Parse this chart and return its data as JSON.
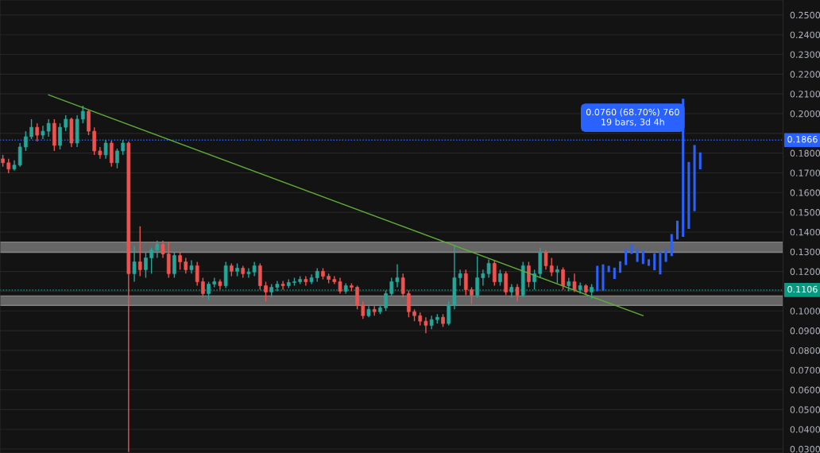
{
  "chart_data": {
    "type": "candlestick",
    "categories": [
      null,
      null,
      null,
      null,
      null,
      null,
      null,
      null,
      null,
      null,
      null,
      null,
      null,
      null,
      null,
      null,
      null,
      null,
      null,
      null,
      null,
      null,
      null,
      null,
      null,
      null,
      null,
      null,
      null,
      null,
      null,
      null,
      null,
      null,
      null,
      null,
      null,
      null,
      null,
      null,
      null,
      null,
      null,
      null,
      null,
      null,
      null,
      null,
      null,
      null,
      null,
      null,
      null,
      null,
      null,
      null,
      null,
      null,
      null,
      null,
      null,
      null,
      null,
      null,
      null,
      null,
      null,
      null,
      null,
      null,
      null,
      null,
      null,
      null,
      null,
      null,
      null,
      null,
      null,
      null,
      null,
      null,
      null,
      null,
      null,
      null,
      null,
      null,
      null,
      null,
      null,
      null,
      null,
      null,
      null,
      null,
      null,
      null,
      null,
      null,
      null,
      null,
      null,
      null,
      null,
      null,
      null,
      null,
      null,
      null,
      null,
      null,
      null,
      null,
      null,
      null,
      null,
      null,
      null,
      null,
      null,
      null,
      null,
      null,
      null,
      null,
      null,
      null,
      null,
      null,
      null,
      null,
      null,
      null,
      null,
      null,
      null
    ],
    "ohlc": [
      [
        0.1771,
        0.1791,
        0.1731,
        0.1751
      ],
      [
        0.1751,
        0.1771,
        0.1698,
        0.1719
      ],
      [
        0.1719,
        0.1763,
        0.1711,
        0.1739
      ],
      [
        0.1739,
        0.1851,
        0.1731,
        0.1831
      ],
      [
        0.1831,
        0.1911,
        0.1811,
        0.1883
      ],
      [
        0.1883,
        0.1972,
        0.1871,
        0.1931
      ],
      [
        0.1931,
        0.1951,
        0.1859,
        0.1891
      ],
      [
        0.1891,
        0.1939,
        0.1871,
        0.1911
      ],
      [
        0.1911,
        0.1972,
        0.1883,
        0.1951
      ],
      [
        0.1951,
        0.1972,
        0.1811,
        0.1839
      ],
      [
        0.1839,
        0.1951,
        0.1819,
        0.1931
      ],
      [
        0.1931,
        0.1992,
        0.1911,
        0.1972
      ],
      [
        0.1972,
        0.198,
        0.1831,
        0.1851
      ],
      [
        0.1851,
        0.1992,
        0.1831,
        0.1972
      ],
      [
        0.1972,
        0.204,
        0.1951,
        0.2012
      ],
      [
        0.2012,
        0.202,
        0.1891,
        0.1911
      ],
      [
        0.1911,
        0.1931,
        0.1791,
        0.1811
      ],
      [
        0.1811,
        0.1831,
        0.1771,
        0.1791
      ],
      [
        0.1791,
        0.1867,
        0.1771,
        0.1851
      ],
      [
        0.1851,
        0.1863,
        0.1731,
        0.1751
      ],
      [
        0.1751,
        0.1823,
        0.1723,
        0.1811
      ],
      [
        0.1811,
        0.1867,
        0.1791,
        0.1851
      ],
      [
        0.1851,
        0.1859,
        0.0285,
        0.1189
      ],
      [
        0.1189,
        0.1329,
        0.1148,
        0.1249
      ],
      [
        0.1249,
        0.1429,
        0.1176,
        0.1209
      ],
      [
        0.1209,
        0.1297,
        0.1168,
        0.1269
      ],
      [
        0.1269,
        0.1321,
        0.1189,
        0.1309
      ],
      [
        0.1309,
        0.1357,
        0.1269,
        0.1337
      ],
      [
        0.1337,
        0.1357,
        0.1269,
        0.1289
      ],
      [
        0.1289,
        0.1349,
        0.1168,
        0.1189
      ],
      [
        0.1189,
        0.1297,
        0.1168,
        0.1281
      ],
      [
        0.1281,
        0.1297,
        0.1209,
        0.1249
      ],
      [
        0.1249,
        0.1269,
        0.1189,
        0.1209
      ],
      [
        0.1209,
        0.1257,
        0.1189,
        0.1229
      ],
      [
        0.1229,
        0.1249,
        0.1128,
        0.1148
      ],
      [
        0.1148,
        0.1168,
        0.1068,
        0.1088
      ],
      [
        0.1088,
        0.1148,
        0.1056,
        0.1136
      ],
      [
        0.1136,
        0.1168,
        0.112,
        0.1148
      ],
      [
        0.1148,
        0.116,
        0.1108,
        0.1128
      ],
      [
        0.1128,
        0.1249,
        0.1116,
        0.1229
      ],
      [
        0.1229,
        0.1241,
        0.1176,
        0.1201
      ],
      [
        0.1201,
        0.1241,
        0.1176,
        0.1217
      ],
      [
        0.1217,
        0.1229,
        0.1168,
        0.1189
      ],
      [
        0.1189,
        0.1217,
        0.1168,
        0.1197
      ],
      [
        0.1197,
        0.1249,
        0.1176,
        0.1229
      ],
      [
        0.1229,
        0.1241,
        0.1108,
        0.1128
      ],
      [
        0.1128,
        0.1148,
        0.1048,
        0.1096
      ],
      [
        0.1096,
        0.1136,
        0.1068,
        0.112
      ],
      [
        0.112,
        0.1152,
        0.11,
        0.1136
      ],
      [
        0.1136,
        0.1152,
        0.1108,
        0.1128
      ],
      [
        0.1128,
        0.116,
        0.1116,
        0.1144
      ],
      [
        0.1144,
        0.1168,
        0.1128,
        0.1148
      ],
      [
        0.1148,
        0.1176,
        0.1136,
        0.116
      ],
      [
        0.116,
        0.1176,
        0.1128,
        0.1148
      ],
      [
        0.1148,
        0.1185,
        0.1136,
        0.1168
      ],
      [
        0.1168,
        0.1217,
        0.1148,
        0.1201
      ],
      [
        0.1201,
        0.1217,
        0.116,
        0.1176
      ],
      [
        0.1176,
        0.1189,
        0.114,
        0.116
      ],
      [
        0.116,
        0.1176,
        0.1136,
        0.1148
      ],
      [
        0.1148,
        0.1168,
        0.1088,
        0.11
      ],
      [
        0.11,
        0.114,
        0.1088,
        0.1128
      ],
      [
        0.1128,
        0.114,
        0.11,
        0.112
      ],
      [
        0.112,
        0.1128,
        0.1008,
        0.1028
      ],
      [
        0.1028,
        0.1048,
        0.096,
        0.0976
      ],
      [
        0.0976,
        0.1024,
        0.0968,
        0.1008
      ],
      [
        0.1008,
        0.1024,
        0.0976,
        0.0996
      ],
      [
        0.0996,
        0.1032,
        0.0984,
        0.1016
      ],
      [
        0.1016,
        0.1104,
        0.1,
        0.1088
      ],
      [
        0.1088,
        0.1168,
        0.1076,
        0.1148
      ],
      [
        0.1148,
        0.1237,
        0.112,
        0.1168
      ],
      [
        0.1168,
        0.1189,
        0.1068,
        0.1088
      ],
      [
        0.1088,
        0.1104,
        0.0968,
        0.0996
      ],
      [
        0.0996,
        0.1008,
        0.0948,
        0.0976
      ],
      [
        0.0976,
        0.0992,
        0.0927,
        0.0948
      ],
      [
        0.0948,
        0.0968,
        0.0887,
        0.0927
      ],
      [
        0.0927,
        0.0976,
        0.0907,
        0.0956
      ],
      [
        0.0956,
        0.0984,
        0.0936,
        0.0968
      ],
      [
        0.0968,
        0.0984,
        0.0919,
        0.0936
      ],
      [
        0.0936,
        0.1048,
        0.0927,
        0.1028
      ],
      [
        0.1028,
        0.1329,
        0.1008,
        0.1168
      ],
      [
        0.1168,
        0.1209,
        0.1128,
        0.1189
      ],
      [
        0.1189,
        0.1209,
        0.108,
        0.1108
      ],
      [
        0.1108,
        0.112,
        0.1036,
        0.108
      ],
      [
        0.108,
        0.1277,
        0.1068,
        0.1168
      ],
      [
        0.1168,
        0.1209,
        0.1128,
        0.1189
      ],
      [
        0.1189,
        0.1261,
        0.1168,
        0.1241
      ],
      [
        0.1241,
        0.1257,
        0.1128,
        0.1148
      ],
      [
        0.1148,
        0.1209,
        0.1128,
        0.1189
      ],
      [
        0.1189,
        0.1201,
        0.108,
        0.1096
      ],
      [
        0.1096,
        0.1136,
        0.1068,
        0.112
      ],
      [
        0.112,
        0.1136,
        0.1048,
        0.108
      ],
      [
        0.108,
        0.1249,
        0.1068,
        0.1229
      ],
      [
        0.1229,
        0.1249,
        0.112,
        0.1148
      ],
      [
        0.1148,
        0.1209,
        0.1108,
        0.1189
      ],
      [
        0.1189,
        0.1321,
        0.1168,
        0.1297
      ],
      [
        0.1297,
        0.1309,
        0.1209,
        0.1229
      ],
      [
        0.1229,
        0.1269,
        0.1176,
        0.1197
      ],
      [
        0.1197,
        0.1229,
        0.114,
        0.1209
      ],
      [
        0.1209,
        0.1221,
        0.1108,
        0.1128
      ],
      [
        0.1128,
        0.1168,
        0.11,
        0.1148
      ],
      [
        0.1148,
        0.1189,
        0.1096,
        0.1108
      ],
      [
        0.1108,
        0.1144,
        0.1088,
        0.1128
      ],
      [
        0.1128,
        0.1136,
        0.108,
        0.1096
      ],
      [
        0.1096,
        0.1136,
        0.106,
        0.112
      ],
      null,
      null,
      null,
      null,
      null,
      null,
      null,
      null,
      null,
      null,
      null,
      null,
      null,
      null,
      null,
      null,
      null,
      null,
      null,
      null,
      null,
      null,
      null,
      null,
      null,
      null,
      null,
      null,
      null,
      null,
      null,
      null,
      null
    ],
    "series": [
      {
        "type": "candlestick",
        "color": "#2962ff",
        "ohlc": [
          null,
          null,
          null,
          null,
          null,
          null,
          null,
          null,
          null,
          null,
          null,
          null,
          null,
          null,
          null,
          null,
          null,
          null,
          null,
          null,
          null,
          null,
          null,
          null,
          null,
          null,
          null,
          null,
          null,
          null,
          null,
          null,
          null,
          null,
          null,
          null,
          null,
          null,
          null,
          null,
          null,
          null,
          null,
          null,
          null,
          null,
          null,
          null,
          null,
          null,
          null,
          null,
          null,
          null,
          null,
          null,
          null,
          null,
          null,
          null,
          null,
          null,
          null,
          null,
          null,
          null,
          null,
          null,
          null,
          null,
          null,
          null,
          null,
          null,
          null,
          null,
          null,
          null,
          null,
          null,
          null,
          null,
          null,
          null,
          null,
          null,
          null,
          null,
          null,
          null,
          null,
          null,
          null,
          null,
          null,
          null,
          null,
          null,
          null,
          null,
          null,
          null,
          null,
          null,
          [
            0.11,
            0.1229,
            0.11,
            0.1229
          ],
          [
            0.1102,
            0.1236,
            0.1102,
            0.1236
          ],
          [
            0.1196,
            0.1229,
            0.1196,
            0.1229
          ],
          [
            0.1162,
            0.122,
            0.1162,
            0.122
          ],
          [
            0.1193,
            0.1252,
            0.1193,
            0.1252
          ],
          [
            0.1233,
            0.1313,
            0.1233,
            0.1313
          ],
          [
            0.1289,
            0.1336,
            0.1289,
            0.1336
          ],
          [
            0.1249,
            0.1316,
            0.1249,
            0.1316
          ],
          [
            0.1238,
            0.1305,
            0.1238,
            0.1305
          ],
          [
            0.1229,
            0.1262,
            0.1229,
            0.1262
          ],
          [
            0.1206,
            0.1292,
            0.1206,
            0.1292
          ],
          [
            0.1185,
            0.13,
            0.1185,
            0.13
          ],
          [
            0.1249,
            0.1313,
            0.1249,
            0.1313
          ],
          [
            0.1278,
            0.139,
            0.1278,
            0.139
          ],
          [
            0.1363,
            0.1457,
            0.1363,
            0.1457
          ],
          [
            0.1376,
            0.2076,
            0.1376,
            0.2076
          ],
          [
            0.1416,
            0.1755,
            0.1416,
            0.1755
          ],
          [
            0.1506,
            0.1841,
            0.1506,
            0.1841
          ],
          [
            0.1718,
            0.1804,
            0.1718,
            0.1804
          ],
          null,
          null,
          null,
          null,
          null,
          null,
          null,
          null,
          null,
          null,
          null,
          null,
          null,
          null
        ]
      },
      {
        "type": "line",
        "color": "#5fae3a",
        "values": [
          null,
          null,
          null,
          null,
          null,
          null,
          null,
          null,
          0.2095,
          null,
          null,
          null,
          null,
          null,
          null,
          null,
          null,
          null,
          null,
          null,
          null,
          null,
          null,
          null,
          null,
          null,
          null,
          null,
          null,
          null,
          null,
          null,
          null,
          null,
          null,
          null,
          null,
          null,
          null,
          null,
          null,
          null,
          null,
          null,
          null,
          null,
          null,
          null,
          null,
          null,
          null,
          null,
          null,
          null,
          null,
          null,
          null,
          null,
          null,
          null,
          null,
          null,
          null,
          null,
          null,
          null,
          null,
          null,
          null,
          null,
          null,
          null,
          null,
          null,
          null,
          null,
          null,
          null,
          null,
          null,
          null,
          null,
          null,
          null,
          null,
          null,
          null,
          null,
          null,
          null,
          null,
          null,
          null,
          null,
          null,
          null,
          null,
          null,
          null,
          null,
          null,
          null,
          null,
          null,
          null,
          null,
          null,
          null,
          null,
          null,
          null,
          null,
          0.0976,
          null,
          null,
          null,
          null,
          null,
          null,
          null,
          null,
          null,
          null,
          null,
          null,
          null,
          null,
          null,
          null,
          null,
          null,
          null,
          null,
          null,
          null,
          null,
          null
        ]
      }
    ],
    "ylim": [
      0.028,
      0.2576
    ],
    "yticks": [
      {
        "value": 0.03,
        "label": "0.0300"
      },
      {
        "value": 0.04,
        "label": "0.0400"
      },
      {
        "value": 0.05,
        "label": "0.0500"
      },
      {
        "value": 0.06,
        "label": "0.0600"
      },
      {
        "value": 0.07,
        "label": "0.0700"
      },
      {
        "value": 0.08,
        "label": "0.0800"
      },
      {
        "value": 0.09,
        "label": "0.0900"
      },
      {
        "value": 0.1,
        "label": "0.1000"
      },
      {
        "value": 0.11,
        "label": null
      },
      {
        "value": 0.12,
        "label": "0.1200"
      },
      {
        "value": 0.13,
        "label": "0.1300"
      },
      {
        "value": 0.14,
        "label": "0.1400"
      },
      {
        "value": 0.15,
        "label": "0.1500"
      },
      {
        "value": 0.16,
        "label": "0.1600"
      },
      {
        "value": 0.17,
        "label": "0.1700"
      },
      {
        "value": 0.18,
        "label": "0.1800"
      },
      {
        "value": 0.19,
        "label": null
      },
      {
        "value": 0.2,
        "label": "0.2000"
      },
      {
        "value": 0.21,
        "label": "0.2100"
      },
      {
        "value": 0.22,
        "label": "0.2200"
      },
      {
        "value": 0.23,
        "label": "0.2300"
      },
      {
        "value": 0.24,
        "label": "0.2400"
      },
      {
        "value": 0.25,
        "label": "0.2500"
      }
    ],
    "tick_labels": "y",
    "grid": "y",
    "bands": [
      {
        "axis": "y",
        "from": 0.1297,
        "to": 0.1349,
        "color": "#9e9e9e"
      },
      {
        "axis": "y",
        "from": 0.1028,
        "to": 0.1076,
        "color": "#9e9e9e"
      }
    ],
    "ref_lines": [
      {
        "axis": "y",
        "value": 0.1106,
        "label": "0.1106",
        "color": "#089981",
        "line_style": "dotted"
      },
      {
        "axis": "y",
        "value": 0.1866,
        "label": "0.1866",
        "color": "#2962ff",
        "line_style": "dotted"
      }
    ],
    "annotations": [
      "0.0760 (68.70%) 760\n19 bars, 3d 4h"
    ]
  }
}
